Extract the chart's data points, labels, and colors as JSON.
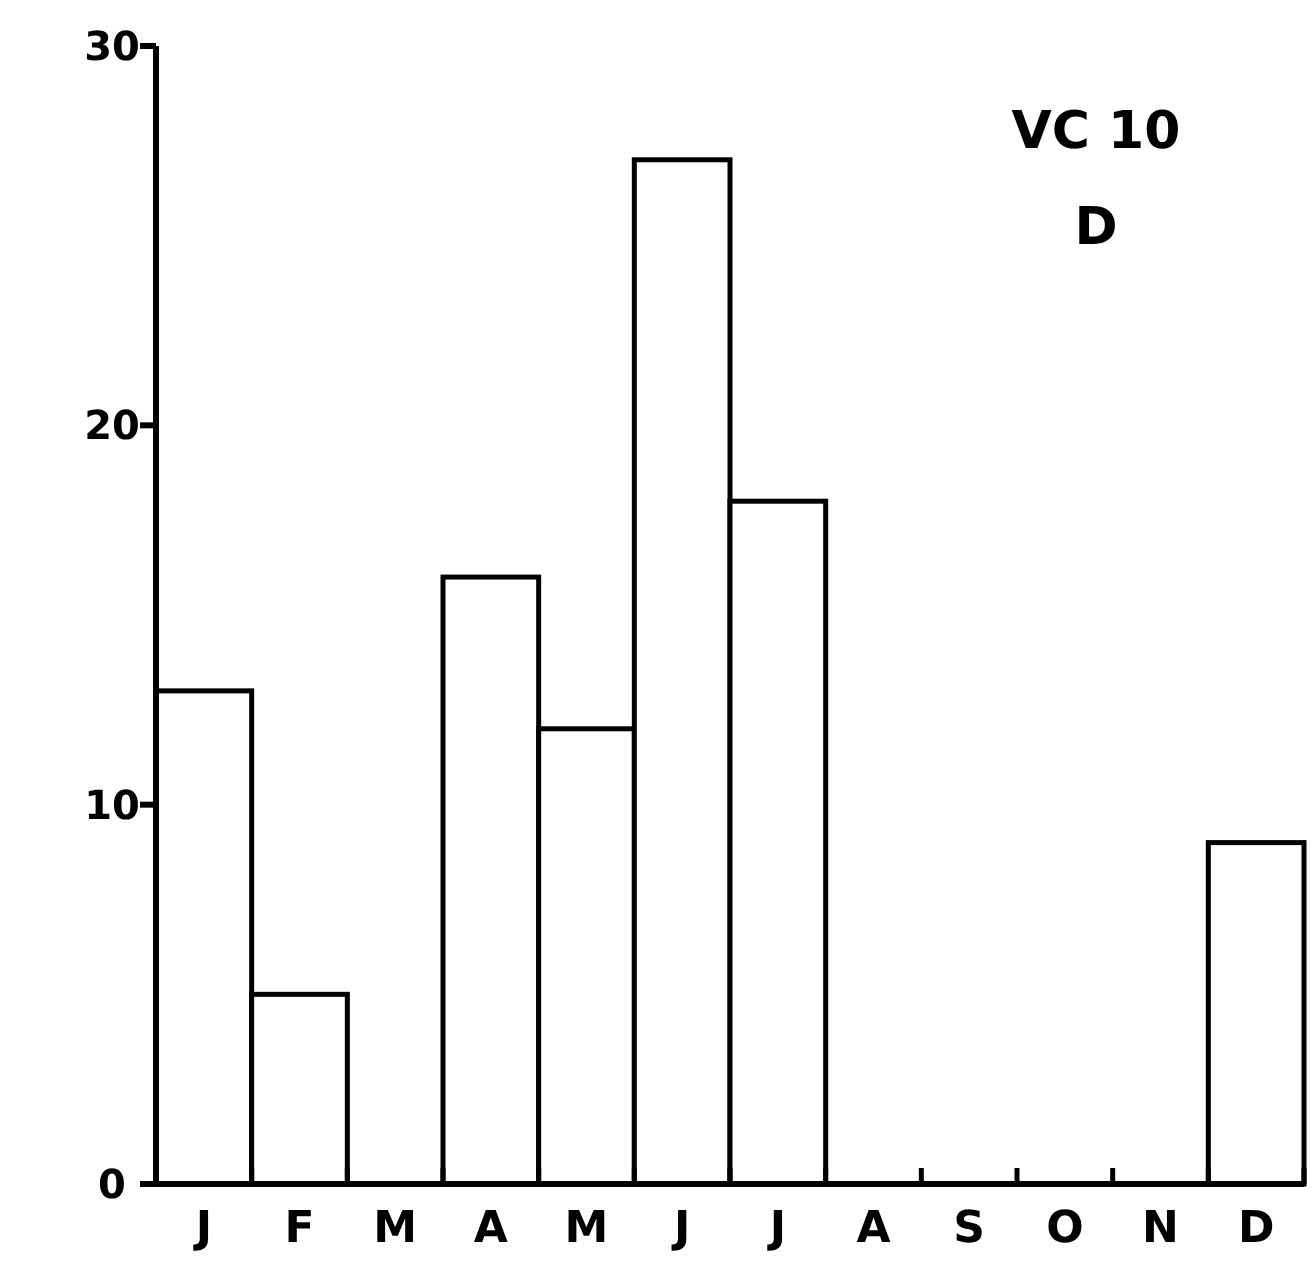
{
  "chart_data": {
    "type": "bar",
    "categories": [
      "J",
      "F",
      "M",
      "A",
      "M",
      "J",
      "J",
      "A",
      "S",
      "O",
      "N",
      "D"
    ],
    "values": [
      13,
      5,
      0,
      16,
      12,
      27,
      18,
      0,
      0,
      0,
      0,
      9
    ],
    "color": "#ffffff",
    "ylim": [
      0,
      30
    ],
    "yticks": [
      0,
      10,
      20,
      30
    ],
    "annotations": [
      "VC 10",
      "D"
    ]
  }
}
